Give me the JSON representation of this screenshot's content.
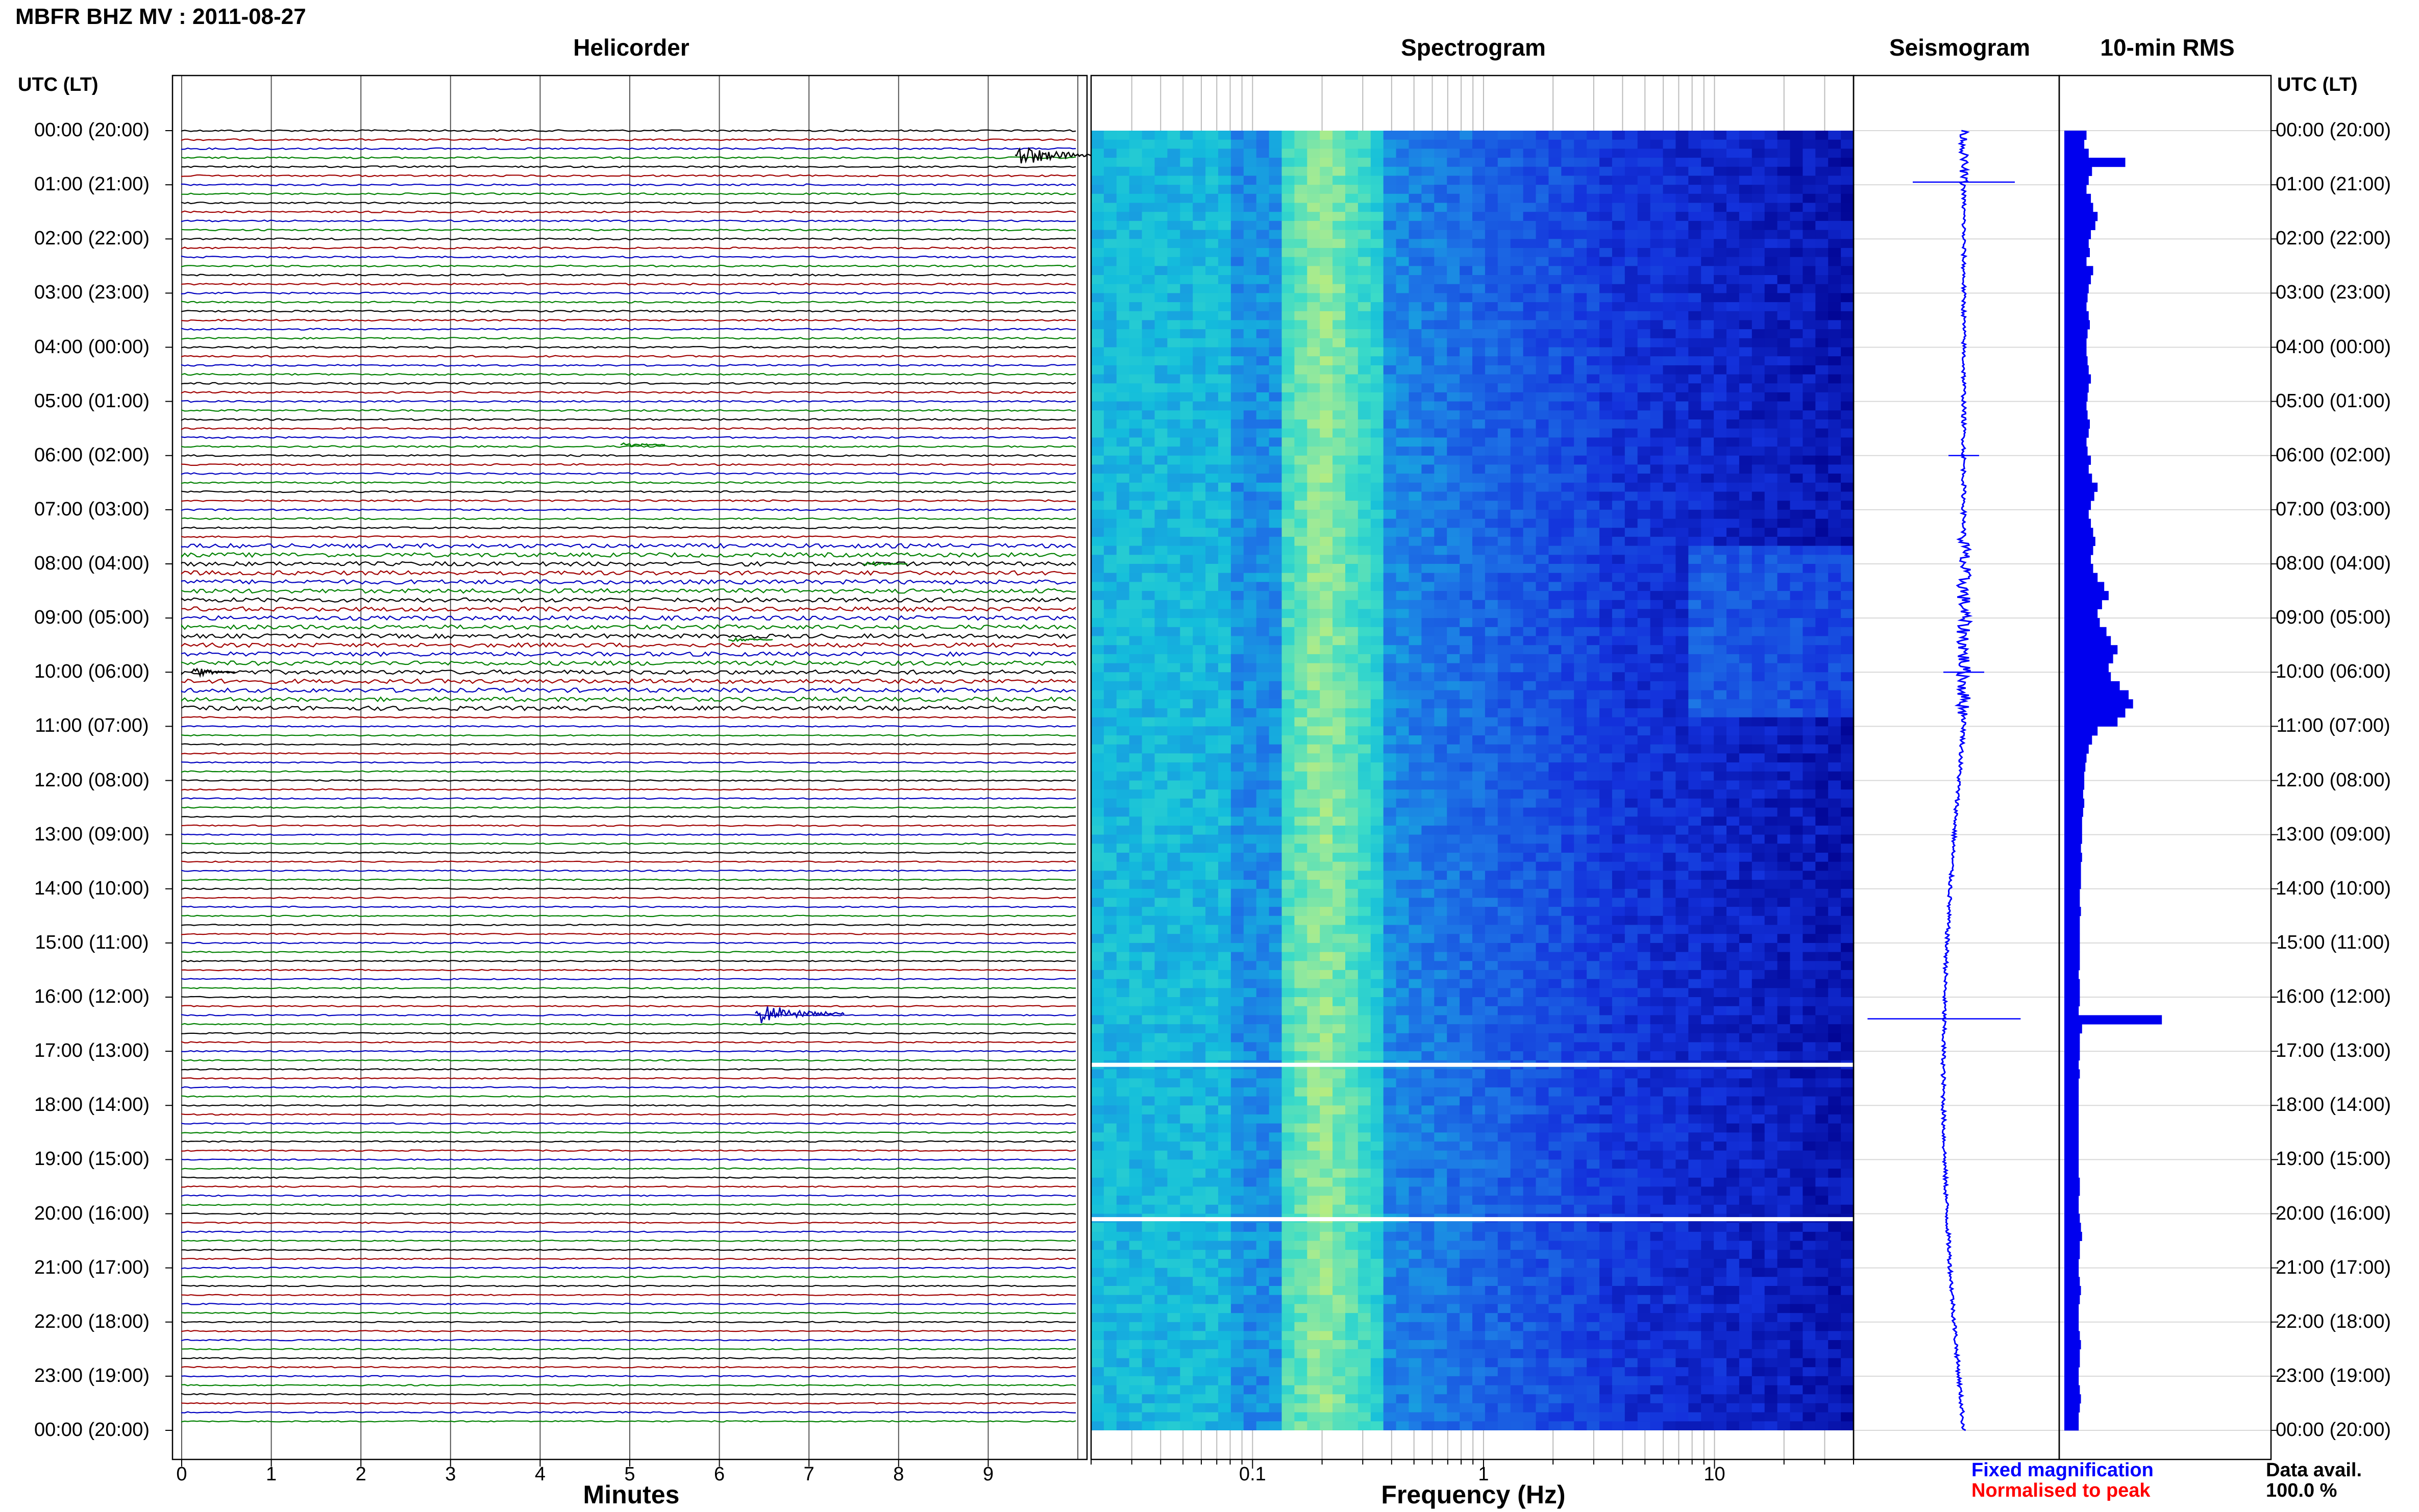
{
  "header": {
    "title": "MBFR BHZ MV : 2011-08-27",
    "time_heading_left": "UTC (LT)",
    "time_heading_right": "UTC (LT)"
  },
  "time_labels": [
    "00:00 (20:00)",
    "01:00 (21:00)",
    "02:00 (22:00)",
    "03:00 (23:00)",
    "04:00 (00:00)",
    "05:00 (01:00)",
    "06:00 (02:00)",
    "07:00 (03:00)",
    "08:00 (04:00)",
    "09:00 (05:00)",
    "10:00 (06:00)",
    "11:00 (07:00)",
    "12:00 (08:00)",
    "13:00 (09:00)",
    "14:00 (10:00)",
    "15:00 (11:00)",
    "16:00 (12:00)",
    "17:00 (13:00)",
    "18:00 (14:00)",
    "19:00 (15:00)",
    "20:00 (16:00)",
    "21:00 (17:00)",
    "22:00 (18:00)",
    "23:00 (19:00)",
    "00:00 (20:00)"
  ],
  "colors": {
    "trace_cycle": [
      "#000000",
      "#a00000",
      "#0000c0",
      "#008000"
    ],
    "spectrogram_low": "#00008b",
    "spectrogram_high": "#d8f060",
    "rms_bar": "#0000ee",
    "seismogram": "#0000ff",
    "legend_fixed": "#0000ff",
    "legend_normalised": "#ff0000"
  },
  "chart_data": [
    {
      "type": "line",
      "panel": "helicorder",
      "title": "Helicorder",
      "xlabel": "Minutes",
      "x_ticks": [
        "0",
        "1",
        "2",
        "3",
        "4",
        "5",
        "6",
        "7",
        "8",
        "9"
      ],
      "xlim": [
        0,
        10
      ],
      "rows": 144,
      "rows_per_hour": 6,
      "trace_colors": "cycle of black, dark red, blue, green per row",
      "events": [
        {
          "hour_utc": 0.45,
          "minute": 9.3,
          "color": "black",
          "amplitude": "large"
        },
        {
          "hour_utc": 10.0,
          "minute": 0.1,
          "color": "black",
          "amplitude": "medium"
        },
        {
          "hour_utc": 16.3,
          "minute": 6.4,
          "color": "blue",
          "amplitude": "large"
        },
        {
          "hour_utc": 5.8,
          "minute": 4.9,
          "color": "green",
          "amplitude": "small"
        },
        {
          "hour_utc": 9.4,
          "minute": 6.1,
          "color": "green",
          "amplitude": "small"
        },
        {
          "hour_utc": 8.0,
          "minute": 7.6,
          "color": "green",
          "amplitude": "small"
        }
      ]
    },
    {
      "type": "heatmap",
      "panel": "spectrogram",
      "title": "Spectrogram",
      "xlabel": "Frequency (Hz)",
      "x_scale": "log",
      "xlim": [
        0.02,
        40
      ],
      "x_tick_labels": [
        0.1,
        1,
        10
      ],
      "description_of_energy": "peak energy band near 0.15-0.3 Hz (microseism), low energy above 10 Hz",
      "data_gaps_hour_utc": [
        17.25,
        20.1
      ]
    },
    {
      "type": "line",
      "panel": "seismogram",
      "title": "Seismogram",
      "note": "long-period drift trace, bulging lower in the day"
    },
    {
      "type": "bar",
      "panel": "rms",
      "title": "10-min RMS",
      "orientation": "horizontal",
      "x_max": 1.0,
      "values": [
        0.2,
        0.18,
        0.22,
        0.55,
        0.25,
        0.22,
        0.2,
        0.24,
        0.26,
        0.3,
        0.28,
        0.24,
        0.22,
        0.23,
        0.2,
        0.26,
        0.24,
        0.22,
        0.21,
        0.2,
        0.22,
        0.23,
        0.21,
        0.2,
        0.2,
        0.21,
        0.22,
        0.24,
        0.22,
        0.21,
        0.2,
        0.21,
        0.23,
        0.22,
        0.2,
        0.21,
        0.24,
        0.22,
        0.25,
        0.3,
        0.27,
        0.24,
        0.22,
        0.24,
        0.26,
        0.28,
        0.26,
        0.24,
        0.26,
        0.3,
        0.36,
        0.4,
        0.34,
        0.3,
        0.32,
        0.38,
        0.42,
        0.48,
        0.44,
        0.4,
        0.42,
        0.5,
        0.58,
        0.62,
        0.55,
        0.48,
        0.3,
        0.25,
        0.22,
        0.2,
        0.19,
        0.18,
        0.18,
        0.17,
        0.18,
        0.17,
        0.16,
        0.16,
        0.16,
        0.15,
        0.16,
        0.15,
        0.15,
        0.15,
        0.14,
        0.14,
        0.15,
        0.14,
        0.14,
        0.14,
        0.14,
        0.14,
        0.14,
        0.13,
        0.14,
        0.14,
        0.14,
        0.13,
        0.88,
        0.16,
        0.14,
        0.14,
        0.14,
        0.13,
        0.14,
        0.13,
        0.13,
        0.13,
        0.13,
        0.13,
        0.13,
        0.13,
        0.13,
        0.13,
        0.13,
        0.13,
        0.14,
        0.14,
        0.13,
        0.13,
        0.14,
        0.15,
        0.16,
        0.14,
        0.14,
        0.13,
        0.13,
        0.14,
        0.15,
        0.14,
        0.13,
        0.13,
        0.13,
        0.14,
        0.15,
        0.14,
        0.14,
        0.13,
        0.13,
        0.14,
        0.15,
        0.14,
        0.13,
        0.13
      ]
    }
  ],
  "footer": {
    "legend_fixed": "Fixed magnification",
    "legend_normalised": "Normalised to peak",
    "data_avail_label": "Data avail.",
    "data_avail_value": "100.0 %"
  }
}
